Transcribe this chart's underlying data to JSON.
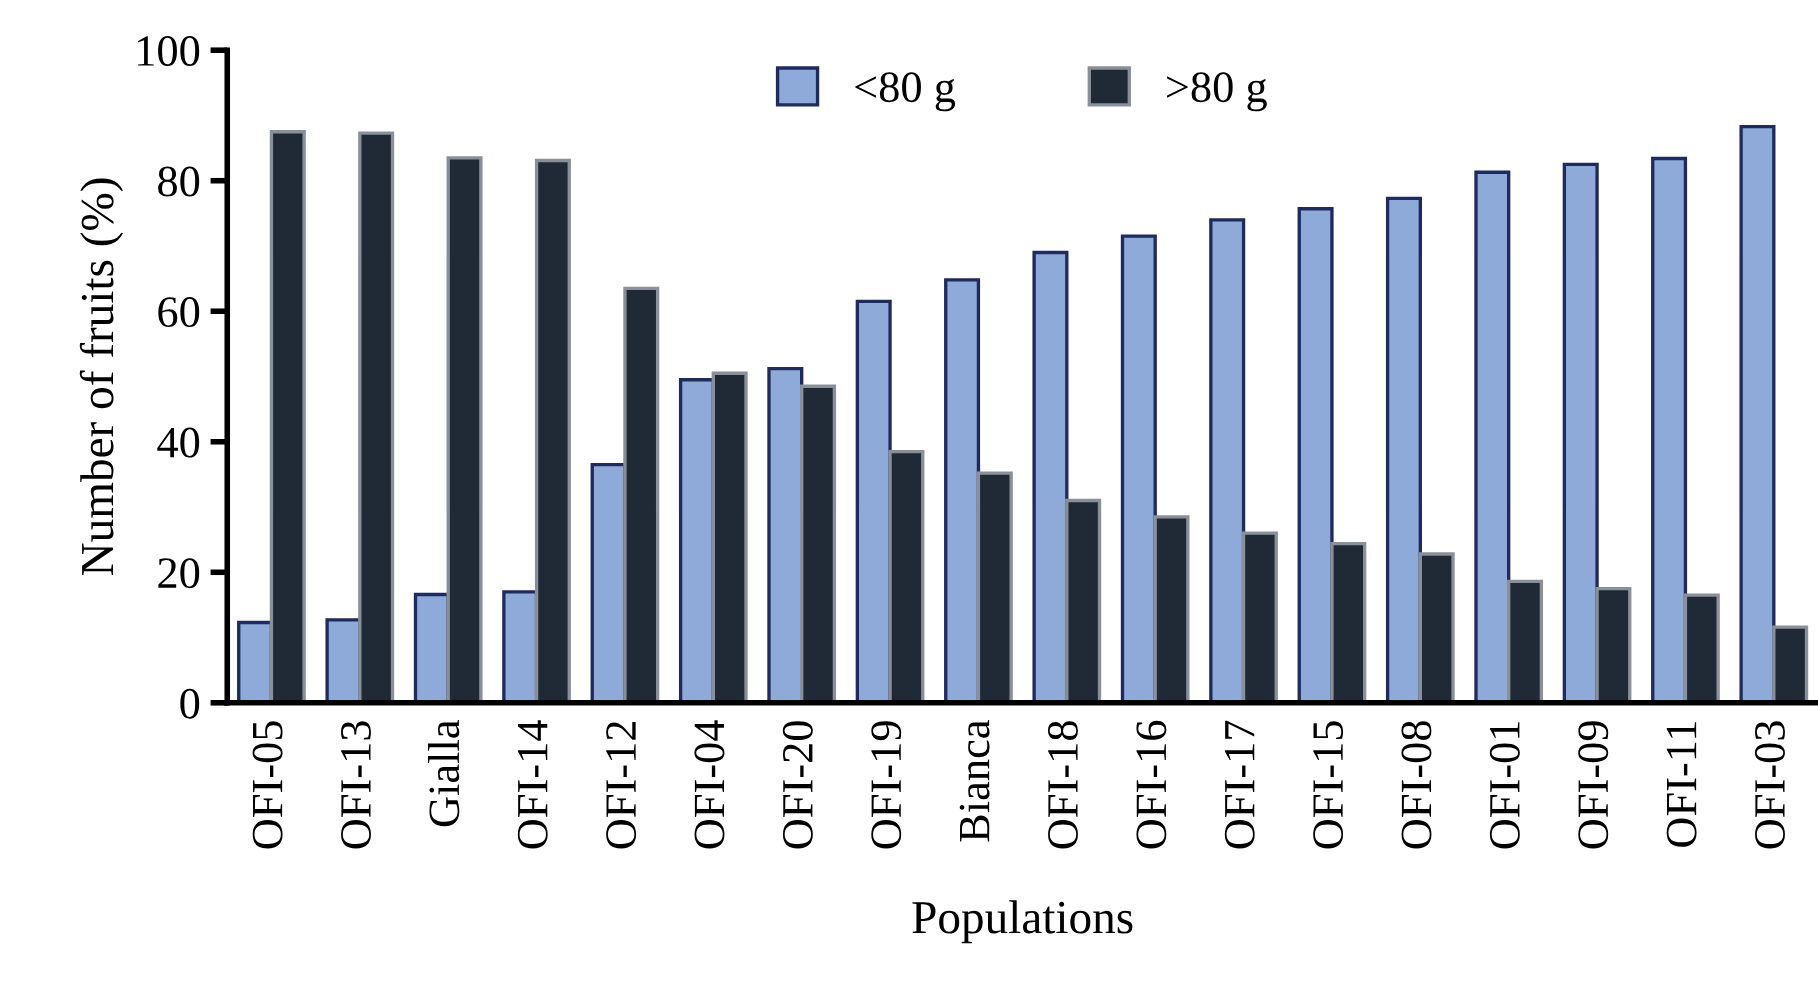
{
  "chart_data": {
    "type": "bar",
    "xlabel": "Populations",
    "ylabel": "Number of fruits (%)",
    "categories": [
      "OFI-05",
      "OFI-13",
      "Gialla",
      "OFI-14",
      "OFI-12",
      "OFI-04",
      "OFI-20",
      "OFI-19",
      "Bianca",
      "OFI-18",
      "OFI-16",
      "OFI-17",
      "OFI-15",
      "OFI-08",
      "OFI-01",
      "OFI-09",
      "OFI-11",
      "OFI-03"
    ],
    "series": [
      {
        "name": "<80 g",
        "color": "#8eaad8",
        "values": [
          12.3,
          12.7,
          16.6,
          17.0,
          36.5,
          49.5,
          51.2,
          61.5,
          64.8,
          69,
          71.5,
          74,
          75.7,
          77.3,
          81.3,
          82.5,
          83.4,
          88.3
        ]
      },
      {
        "name": ">80 g",
        "color": "#1f2a36",
        "values": [
          87.5,
          87.3,
          83.5,
          83.1,
          63.5,
          50.5,
          48.5,
          38.5,
          35.2,
          31,
          28.5,
          26,
          24.4,
          22.8,
          18.6,
          17.5,
          16.5,
          11.6
        ]
      }
    ],
    "ylim": [
      0,
      100
    ],
    "yticks": [
      0,
      20,
      40,
      60,
      80,
      100
    ],
    "grid": false,
    "legend": "top"
  }
}
